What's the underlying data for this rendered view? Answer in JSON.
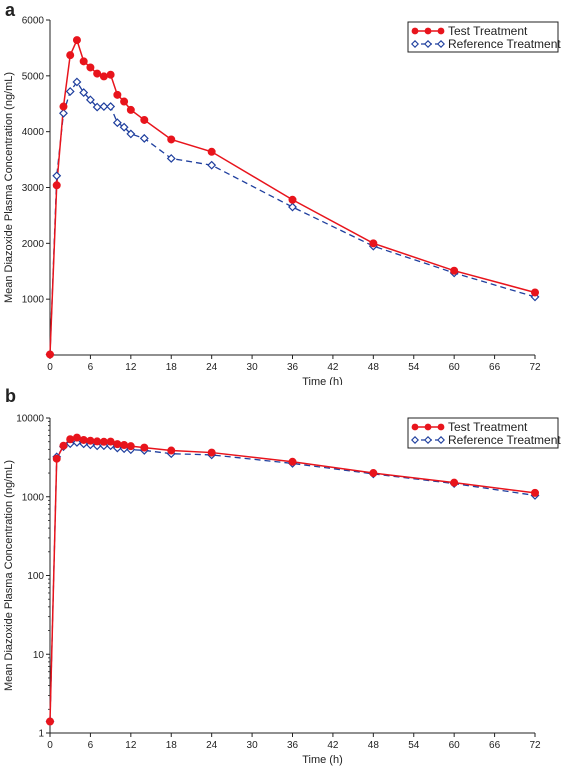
{
  "colors": {
    "test": "#e8141c",
    "reference": "#1f3f9e"
  },
  "chart_data": [
    {
      "panel_label": "a",
      "type": "line",
      "yscale": "linear",
      "xlabel": "Time (h)",
      "ylabel": "Mean Diazoxide Plasma Concentration (ng/mL)",
      "xlim": [
        0,
        72
      ],
      "ylim": [
        0,
        6000
      ],
      "xticks": [
        0,
        6,
        12,
        18,
        24,
        30,
        36,
        42,
        48,
        54,
        60,
        66,
        72
      ],
      "yticks": [
        1000,
        2000,
        3000,
        4000,
        5000,
        6000
      ],
      "legend_position": "top-right",
      "series": [
        {
          "name": "Test Treatment",
          "x": [
            0,
            1,
            2,
            3,
            4,
            5,
            6,
            7,
            8,
            9,
            10,
            11,
            12,
            14,
            18,
            24,
            36,
            48,
            60,
            72
          ],
          "values": [
            10,
            3040,
            4450,
            5370,
            5640,
            5260,
            5150,
            5040,
            4990,
            5020,
            4660,
            4540,
            4390,
            4210,
            3860,
            3640,
            2780,
            2000,
            1510,
            1120
          ]
        },
        {
          "name": "Reference Treatment",
          "x": [
            0,
            1,
            2,
            3,
            4,
            5,
            6,
            7,
            8,
            9,
            10,
            11,
            12,
            14,
            18,
            24,
            36,
            48,
            60,
            72
          ],
          "values": [
            10,
            3210,
            4330,
            4720,
            4890,
            4700,
            4570,
            4440,
            4450,
            4450,
            4160,
            4080,
            3960,
            3880,
            3520,
            3400,
            2650,
            1950,
            1470,
            1040
          ]
        }
      ]
    },
    {
      "panel_label": "b",
      "type": "line",
      "yscale": "log",
      "xlabel": "Time (h)",
      "ylabel": "Mean Diazoxide Plasma Concentration (ng/mL)",
      "xlim": [
        0,
        72
      ],
      "ylim": [
        1,
        10000
      ],
      "xticks": [
        0,
        6,
        12,
        18,
        24,
        30,
        36,
        42,
        48,
        54,
        60,
        66,
        72
      ],
      "yticks": [
        1,
        10,
        100,
        1000,
        10000
      ],
      "legend_position": "top-right",
      "series": [
        {
          "name": "Test Treatment",
          "x": [
            0,
            1,
            2,
            3,
            4,
            5,
            6,
            7,
            8,
            9,
            10,
            11,
            12,
            14,
            18,
            24,
            36,
            48,
            60,
            72
          ],
          "values": [
            1.4,
            3040,
            4450,
            5370,
            5640,
            5260,
            5150,
            5040,
            4990,
            5020,
            4660,
            4540,
            4390,
            4210,
            3860,
            3640,
            2780,
            2000,
            1510,
            1120
          ]
        },
        {
          "name": "Reference Treatment",
          "x": [
            0,
            1,
            2,
            3,
            4,
            5,
            6,
            7,
            8,
            9,
            10,
            11,
            12,
            14,
            18,
            24,
            36,
            48,
            60,
            72
          ],
          "values": [
            1.4,
            3210,
            4330,
            4720,
            4890,
            4700,
            4570,
            4440,
            4450,
            4450,
            4160,
            4080,
            3960,
            3880,
            3520,
            3400,
            2650,
            1950,
            1470,
            1040
          ]
        }
      ]
    }
  ]
}
